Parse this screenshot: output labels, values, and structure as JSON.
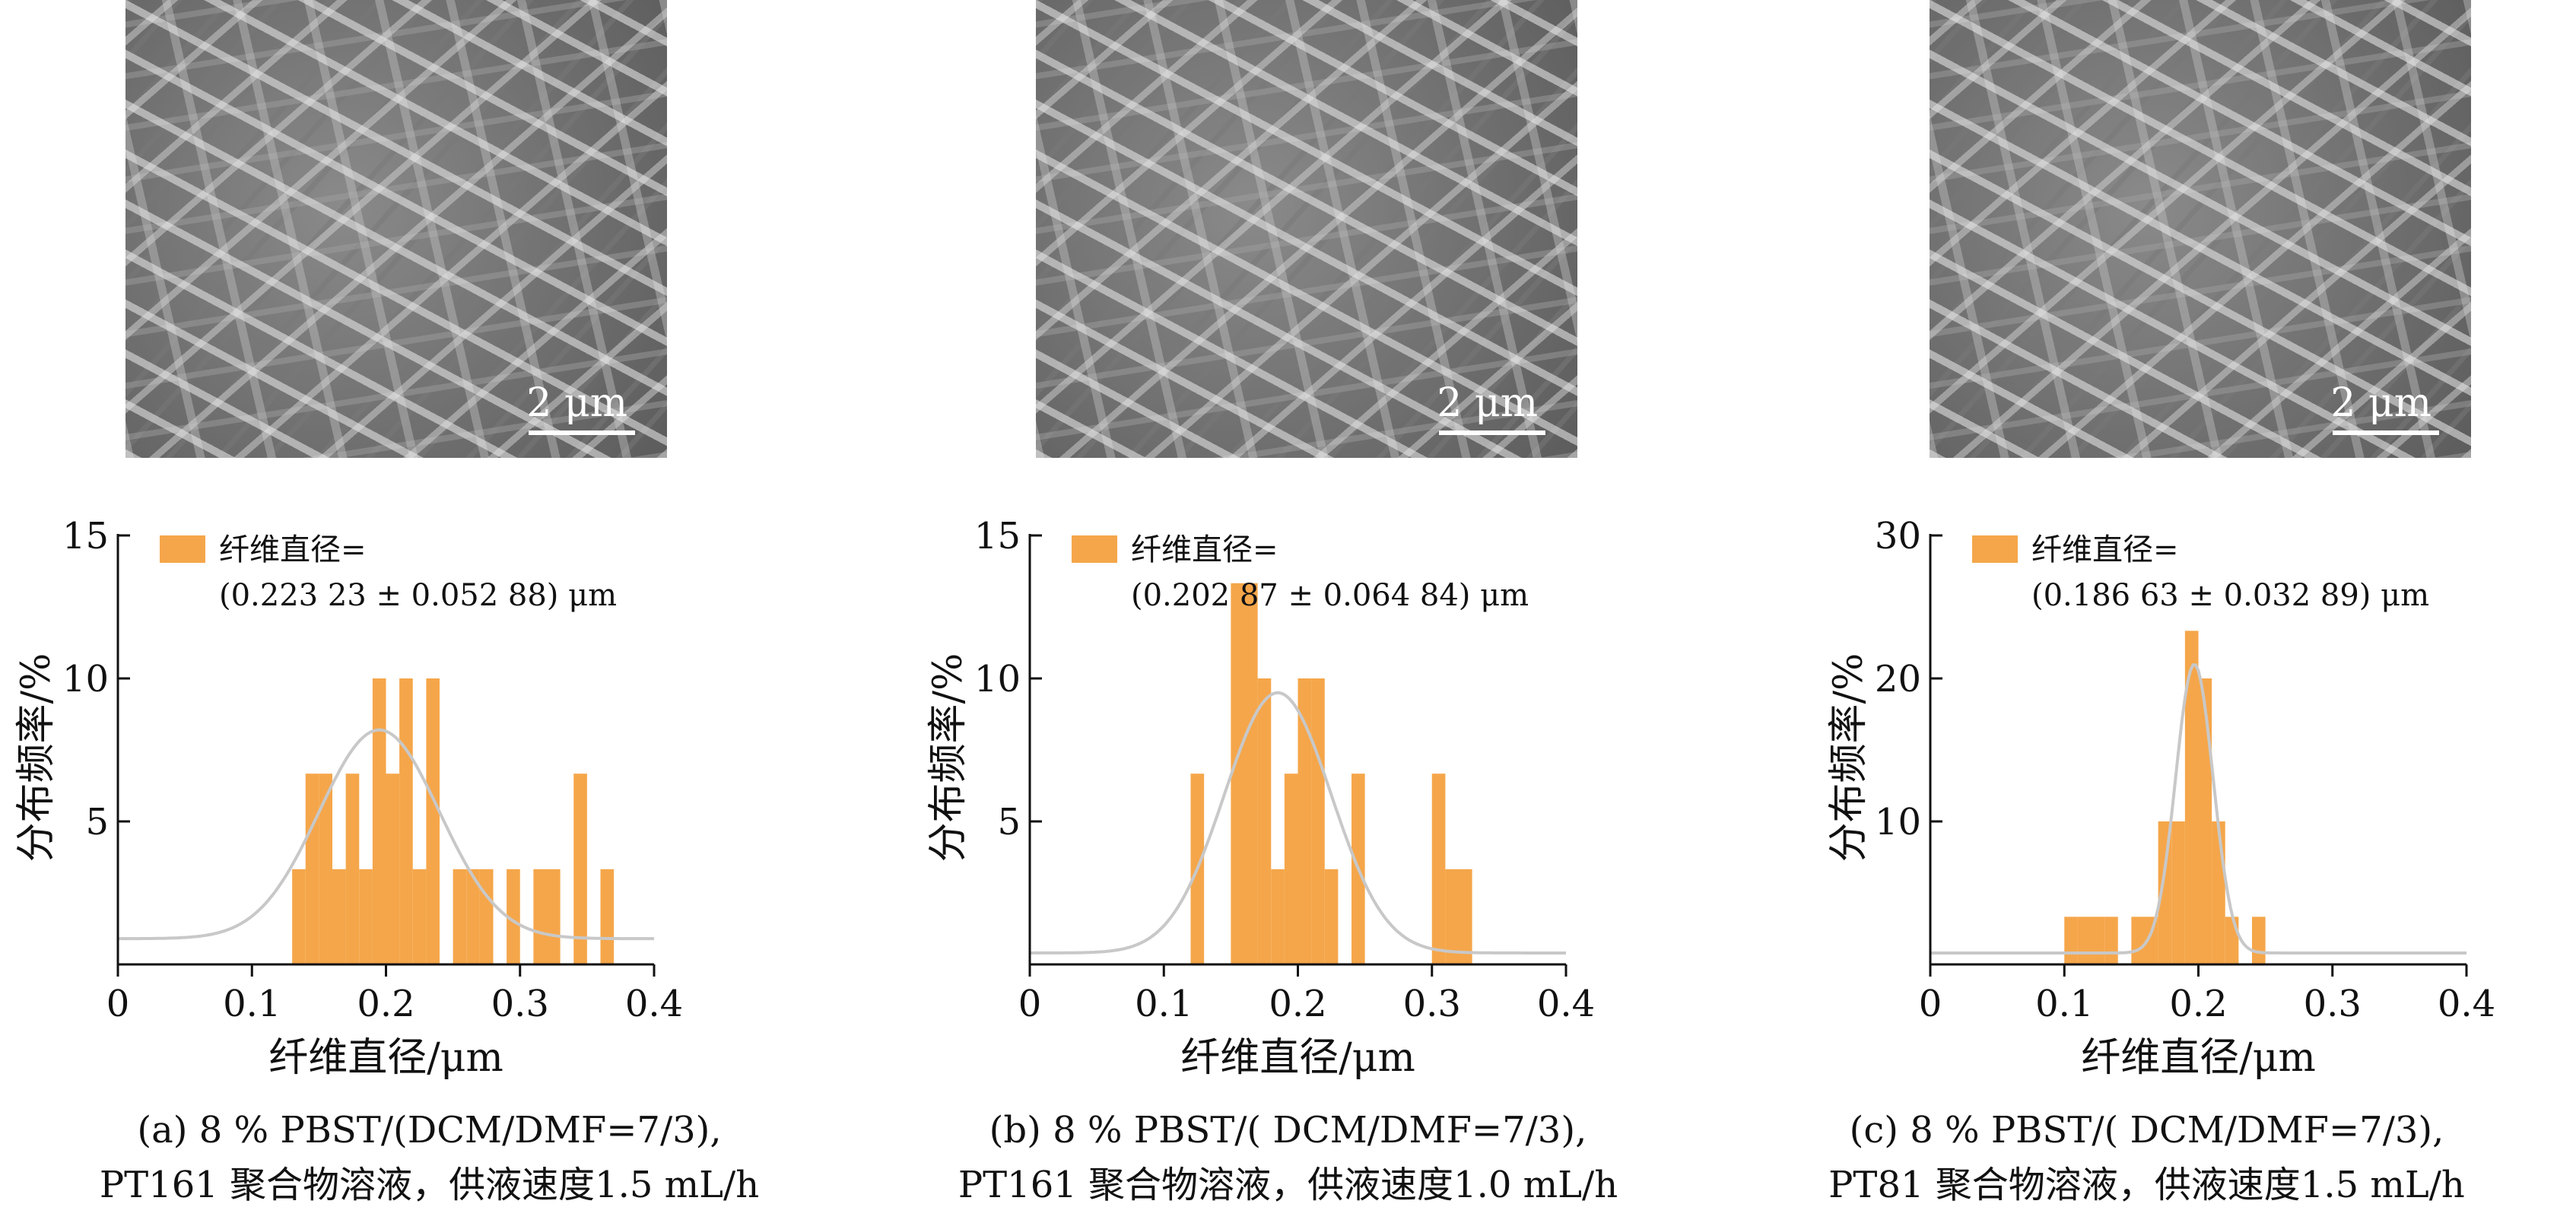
{
  "colors": {
    "bar": "#F5A64A",
    "fit_curve": "#C8C8C8",
    "axis": "#111111"
  },
  "sem_images": [
    {
      "scale_label": "2 μm"
    },
    {
      "scale_label": "2 μm"
    },
    {
      "scale_label": "2 μm"
    }
  ],
  "captions": [
    {
      "line1": "(a) 8 % PBST/(DCM/DMF=7/3),",
      "line2": "PT161 聚合物溶液，供液速度1.5 mL/h"
    },
    {
      "line1": "(b) 8 % PBST/( DCM/DMF=7/3),",
      "line2": "PT161 聚合物溶液，供液速度1.0 mL/h"
    },
    {
      "line1": "(c) 8 % PBST/( DCM/DMF=7/3),",
      "line2": "PT81 聚合物溶液，供液速度1.5 mL/h"
    }
  ],
  "chart_data": [
    {
      "type": "bar",
      "xlabel": "纤维直径/μm",
      "ylabel": "分布频率/%",
      "xlim": [
        0,
        0.4
      ],
      "ylim": [
        0,
        15
      ],
      "xticks": [
        0,
        0.1,
        0.2,
        0.3,
        0.4
      ],
      "xtick_labels": [
        "0",
        "0.1",
        "0.2",
        "0.3",
        "0.4"
      ],
      "yticks": [
        5,
        10,
        15
      ],
      "ytick_labels": [
        "5",
        "10",
        "15"
      ],
      "legend": {
        "label": "纤维直径=",
        "value": "(0.223 23 ± 0.052 88) μm",
        "position": "top-left"
      },
      "bin_width": 0.01,
      "bins": [
        {
          "x": 0.13,
          "y": 3.33
        },
        {
          "x": 0.14,
          "y": 6.67
        },
        {
          "x": 0.15,
          "y": 6.67
        },
        {
          "x": 0.16,
          "y": 3.33
        },
        {
          "x": 0.17,
          "y": 6.67
        },
        {
          "x": 0.18,
          "y": 3.33
        },
        {
          "x": 0.19,
          "y": 10.0
        },
        {
          "x": 0.2,
          "y": 6.67
        },
        {
          "x": 0.21,
          "y": 10.0
        },
        {
          "x": 0.22,
          "y": 3.33
        },
        {
          "x": 0.23,
          "y": 10.0
        },
        {
          "x": 0.25,
          "y": 3.33
        },
        {
          "x": 0.26,
          "y": 3.33
        },
        {
          "x": 0.27,
          "y": 3.33
        },
        {
          "x": 0.29,
          "y": 3.33
        },
        {
          "x": 0.31,
          "y": 3.33
        },
        {
          "x": 0.32,
          "y": 3.33
        },
        {
          "x": 0.34,
          "y": 6.67
        },
        {
          "x": 0.36,
          "y": 3.33
        }
      ],
      "fit": {
        "mean": 0.195,
        "sd": 0.045,
        "peak": 8.2,
        "baseline": 0.9
      }
    },
    {
      "type": "bar",
      "xlabel": "纤维直径/μm",
      "ylabel": "分布频率/%",
      "xlim": [
        0,
        0.4
      ],
      "ylim": [
        0,
        15
      ],
      "xticks": [
        0,
        0.1,
        0.2,
        0.3,
        0.4
      ],
      "xtick_labels": [
        "0",
        "0.1",
        "0.2",
        "0.3",
        "0.4"
      ],
      "yticks": [
        5,
        10,
        15
      ],
      "ytick_labels": [
        "5",
        "10",
        "15"
      ],
      "legend": {
        "label": "纤维直径=",
        "value": "(0.202 87 ± 0.064 84) μm",
        "position": "top-left"
      },
      "bin_width": 0.01,
      "bins": [
        {
          "x": 0.12,
          "y": 6.67
        },
        {
          "x": 0.15,
          "y": 13.33
        },
        {
          "x": 0.16,
          "y": 13.33
        },
        {
          "x": 0.17,
          "y": 10.0
        },
        {
          "x": 0.18,
          "y": 3.33
        },
        {
          "x": 0.19,
          "y": 6.67
        },
        {
          "x": 0.2,
          "y": 10.0
        },
        {
          "x": 0.21,
          "y": 10.0
        },
        {
          "x": 0.22,
          "y": 3.33
        },
        {
          "x": 0.24,
          "y": 6.67
        },
        {
          "x": 0.3,
          "y": 6.67
        },
        {
          "x": 0.31,
          "y": 3.33
        },
        {
          "x": 0.32,
          "y": 3.33
        }
      ],
      "fit": {
        "mean": 0.185,
        "sd": 0.04,
        "peak": 9.5,
        "baseline": 0.4
      }
    },
    {
      "type": "bar",
      "xlabel": "纤维直径/μm",
      "ylabel": "分布频率/%",
      "xlim": [
        0,
        0.4
      ],
      "ylim": [
        0,
        30
      ],
      "xticks": [
        0,
        0.1,
        0.2,
        0.3,
        0.4
      ],
      "xtick_labels": [
        "0",
        "0.1",
        "0.2",
        "0.3",
        "0.4"
      ],
      "yticks": [
        10,
        20,
        30
      ],
      "ytick_labels": [
        "10",
        "20",
        "30"
      ],
      "legend": {
        "label": "纤维直径=",
        "value": "(0.186 63 ± 0.032 89) μm",
        "position": "top-left"
      },
      "bin_width": 0.01,
      "bins": [
        {
          "x": 0.1,
          "y": 3.33
        },
        {
          "x": 0.11,
          "y": 3.33
        },
        {
          "x": 0.12,
          "y": 3.33
        },
        {
          "x": 0.13,
          "y": 3.33
        },
        {
          "x": 0.15,
          "y": 3.33
        },
        {
          "x": 0.16,
          "y": 3.33
        },
        {
          "x": 0.17,
          "y": 10.0
        },
        {
          "x": 0.18,
          "y": 10.0
        },
        {
          "x": 0.19,
          "y": 23.33
        },
        {
          "x": 0.2,
          "y": 20.0
        },
        {
          "x": 0.21,
          "y": 10.0
        },
        {
          "x": 0.22,
          "y": 3.33
        },
        {
          "x": 0.24,
          "y": 3.33
        }
      ],
      "fit": {
        "mean": 0.197,
        "sd": 0.014,
        "peak": 21.0,
        "baseline": 0.8
      }
    }
  ]
}
